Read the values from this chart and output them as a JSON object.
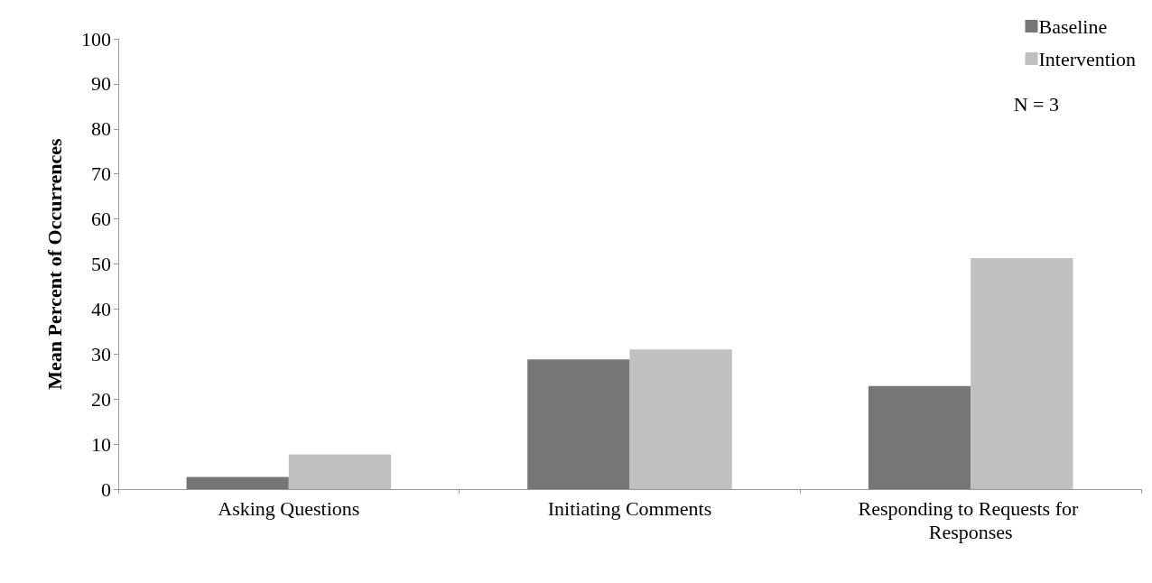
{
  "chart_data": {
    "type": "bar",
    "ylabel": "Mean Percent of Occurrences",
    "categories": [
      "Asking Questions",
      "Initiating Comments",
      "Responding to Requests for Responses"
    ],
    "series": [
      {
        "name": "Baseline",
        "color": "#767676",
        "values": [
          2.7,
          28.8,
          22.9
        ]
      },
      {
        "name": "Intervention",
        "color": "#c0c0c0",
        "values": [
          7.7,
          31,
          51.3
        ]
      }
    ],
    "ylim": [
      0,
      100
    ],
    "yticks": [
      0,
      10,
      20,
      30,
      40,
      50,
      60,
      70,
      80,
      90,
      100
    ],
    "grid": false,
    "legend": "top right",
    "annotations": [
      "N = 3"
    ]
  }
}
